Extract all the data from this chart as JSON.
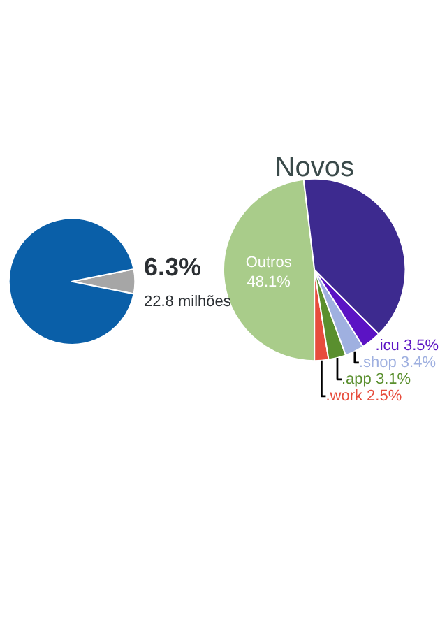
{
  "chart_data": [
    {
      "type": "pie",
      "categories": [
        null,
        null
      ],
      "values": [
        6.3,
        93.7
      ],
      "colors": [
        "#a6a6a6",
        "#0a5fa8"
      ],
      "value_labels": [
        "6.3%",
        null
      ],
      "annotations": [
        "22.8 milhões"
      ]
    },
    {
      "type": "pie",
      "title": "Novos",
      "categories": [
        "Outros",
        ".work",
        ".app",
        ".shop",
        ".icu",
        null
      ],
      "values": [
        48.1,
        2.5,
        3.1,
        3.4,
        3.5,
        39.4
      ],
      "colors": [
        "#a9cc8a",
        "#e74c3c",
        "#5a8f2e",
        "#9fb0e0",
        "#5b13c4",
        "#3d2a8f"
      ],
      "value_labels": [
        "48.1%",
        "2.5%",
        "3.1%",
        "3.4%",
        "3.5%",
        null
      ]
    }
  ]
}
